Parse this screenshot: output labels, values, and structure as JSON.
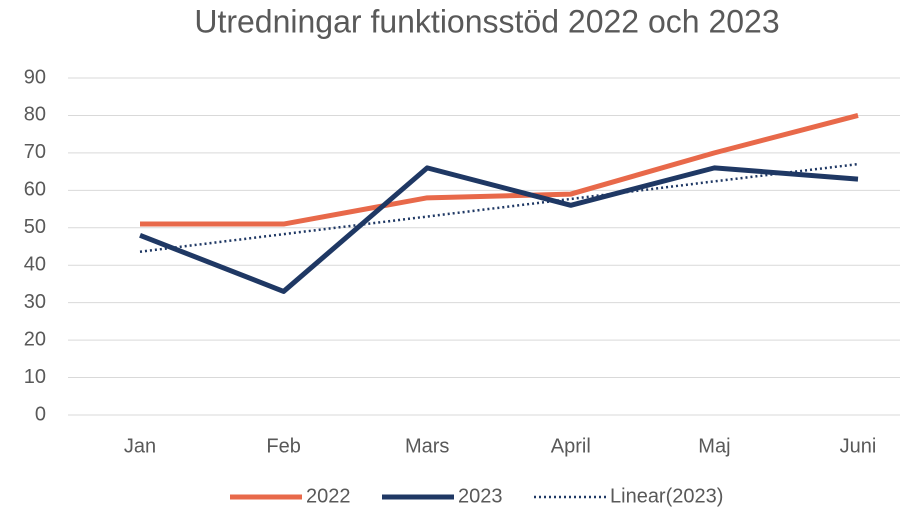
{
  "chart_data": {
    "type": "line",
    "title": "Utredningar funktionsstöd 2022 och 2023",
    "categories": [
      "Jan",
      "Feb",
      "Mars",
      "April",
      "Maj",
      "Juni"
    ],
    "series": [
      {
        "name": "2022",
        "color": "#e8694a",
        "values": [
          51,
          51,
          58,
          59,
          70,
          80
        ]
      },
      {
        "name": "2023",
        "color": "#1f3864",
        "values": [
          48,
          33,
          66,
          56,
          66,
          63
        ]
      },
      {
        "name": "Linear(2023)",
        "color": "#1f3864",
        "dash": "dotted",
        "values": [
          43.6,
          48.3,
          53.0,
          57.7,
          62.4,
          67.0
        ]
      }
    ],
    "ylim": [
      0,
      90
    ],
    "yticks": [
      0,
      10,
      20,
      30,
      40,
      50,
      60,
      70,
      80,
      90
    ],
    "grid": true,
    "legend": "bottom"
  }
}
